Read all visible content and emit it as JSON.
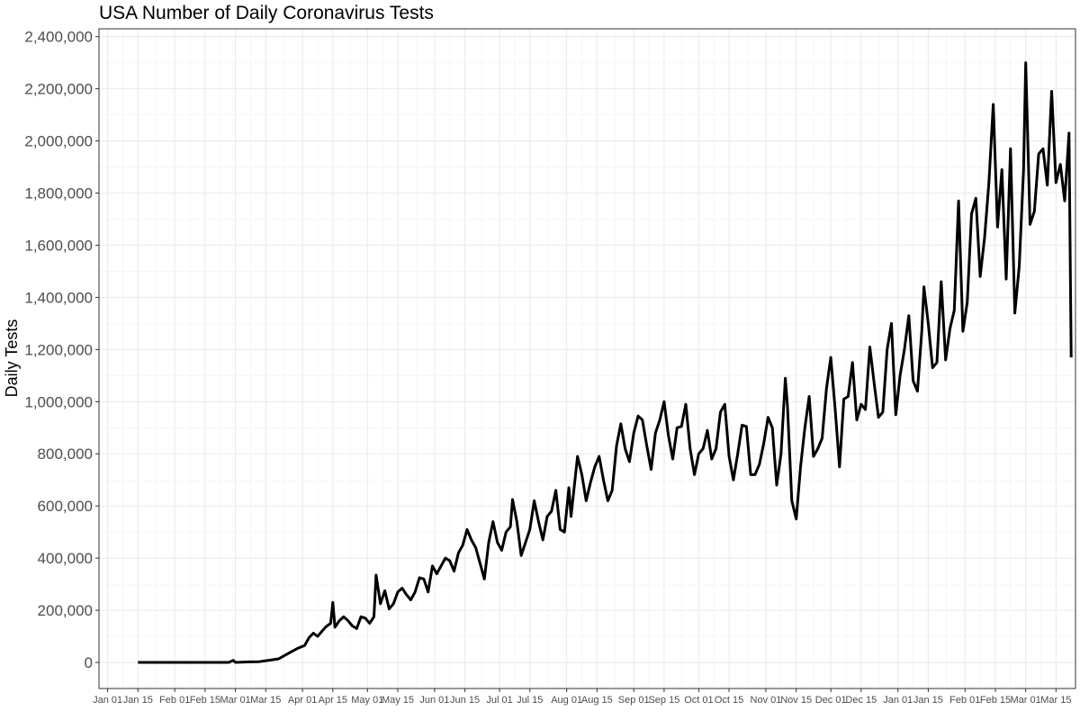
{
  "chart_data": {
    "type": "line",
    "title": "USA Number of Daily Coronavirus Tests",
    "xlabel": "",
    "ylabel": "Daily Tests",
    "ylim": [
      -100000,
      2430000
    ],
    "xlim": [
      "2020-12-28",
      "2022-03-24"
    ],
    "grid": true,
    "legend": "none",
    "line_color": "#000000",
    "y_ticks": [
      {
        "value": 0,
        "label": "0"
      },
      {
        "value": 200000,
        "label": "200,000"
      },
      {
        "value": 400000,
        "label": "400,000"
      },
      {
        "value": 600000,
        "label": "600,000"
      },
      {
        "value": 800000,
        "label": "800,000"
      },
      {
        "value": 1000000,
        "label": "1,000,000"
      },
      {
        "value": 1200000,
        "label": "1,200,000"
      },
      {
        "value": 1400000,
        "label": "1,400,000"
      },
      {
        "value": 1600000,
        "label": "1,600,000"
      },
      {
        "value": 1800000,
        "label": "1,800,000"
      },
      {
        "value": 2000000,
        "label": "2,000,000"
      },
      {
        "value": 2200000,
        "label": "2,200,000"
      },
      {
        "value": 2400000,
        "label": "2,400,000"
      }
    ],
    "x_ticks": [
      {
        "value": "2021-01-01",
        "label": "Jan 01"
      },
      {
        "value": "2021-01-15",
        "label": "Jan 15"
      },
      {
        "value": "2021-02-01",
        "label": "Feb 01"
      },
      {
        "value": "2021-02-15",
        "label": "Feb 15"
      },
      {
        "value": "2021-03-01",
        "label": "Mar 01"
      },
      {
        "value": "2021-03-15",
        "label": "Mar 15"
      },
      {
        "value": "2021-04-01",
        "label": "Apr 01"
      },
      {
        "value": "2021-04-15",
        "label": "Apr 15"
      },
      {
        "value": "2021-05-01",
        "label": "May 01"
      },
      {
        "value": "2021-05-15",
        "label": "May 15"
      },
      {
        "value": "2021-06-01",
        "label": "Jun 01"
      },
      {
        "value": "2021-06-15",
        "label": "Jun 15"
      },
      {
        "value": "2021-07-01",
        "label": "Jul 01"
      },
      {
        "value": "2021-07-15",
        "label": "Jul 15"
      },
      {
        "value": "2021-08-01",
        "label": "Aug 01"
      },
      {
        "value": "2021-08-15",
        "label": "Aug 15"
      },
      {
        "value": "2021-09-01",
        "label": "Sep 01"
      },
      {
        "value": "2021-09-15",
        "label": "Sep 15"
      },
      {
        "value": "2021-10-01",
        "label": "Oct 01"
      },
      {
        "value": "2021-10-15",
        "label": "Oct 15"
      },
      {
        "value": "2021-11-01",
        "label": "Nov 01"
      },
      {
        "value": "2021-11-15",
        "label": "Nov 15"
      },
      {
        "value": "2021-12-01",
        "label": "Dec 01"
      },
      {
        "value": "2021-12-15",
        "label": "Dec 15"
      },
      {
        "value": "2022-01-01",
        "label": "Jan 01"
      },
      {
        "value": "2022-01-15",
        "label": "Jan 15"
      },
      {
        "value": "2022-02-01",
        "label": "Feb 01"
      },
      {
        "value": "2022-02-15",
        "label": "Feb 15"
      },
      {
        "value": "2022-03-01",
        "label": "Mar 01"
      },
      {
        "value": "2022-03-15",
        "label": "Mar 15"
      }
    ],
    "series": [
      {
        "values": [
          [
            "2021-01-15",
            0
          ],
          [
            "2021-02-01",
            0
          ],
          [
            "2021-02-15",
            0
          ],
          [
            "2021-02-26",
            0
          ],
          [
            "2021-02-28",
            8000
          ],
          [
            "2021-03-01",
            0
          ],
          [
            "2021-03-08",
            2000
          ],
          [
            "2021-03-12",
            3000
          ],
          [
            "2021-03-18",
            10000
          ],
          [
            "2021-03-21",
            14000
          ],
          [
            "2021-03-24",
            28000
          ],
          [
            "2021-03-27",
            42000
          ],
          [
            "2021-03-30",
            55000
          ],
          [
            "2021-04-02",
            65000
          ],
          [
            "2021-04-04",
            95000
          ],
          [
            "2021-04-06",
            112000
          ],
          [
            "2021-04-08",
            100000
          ],
          [
            "2021-04-10",
            120000
          ],
          [
            "2021-04-12",
            138000
          ],
          [
            "2021-04-14",
            150000
          ],
          [
            "2021-04-15",
            230000
          ],
          [
            "2021-04-16",
            135000
          ],
          [
            "2021-04-18",
            160000
          ],
          [
            "2021-04-20",
            175000
          ],
          [
            "2021-04-22",
            160000
          ],
          [
            "2021-04-24",
            140000
          ],
          [
            "2021-04-26",
            130000
          ],
          [
            "2021-04-28",
            175000
          ],
          [
            "2021-04-30",
            170000
          ],
          [
            "2021-05-02",
            150000
          ],
          [
            "2021-05-04",
            175000
          ],
          [
            "2021-05-05",
            335000
          ],
          [
            "2021-05-07",
            225000
          ],
          [
            "2021-05-09",
            275000
          ],
          [
            "2021-05-11",
            205000
          ],
          [
            "2021-05-13",
            225000
          ],
          [
            "2021-05-15",
            270000
          ],
          [
            "2021-05-17",
            285000
          ],
          [
            "2021-05-19",
            260000
          ],
          [
            "2021-05-21",
            240000
          ],
          [
            "2021-05-23",
            270000
          ],
          [
            "2021-05-25",
            325000
          ],
          [
            "2021-05-27",
            320000
          ],
          [
            "2021-05-29",
            270000
          ],
          [
            "2021-05-31",
            370000
          ],
          [
            "2021-06-02",
            340000
          ],
          [
            "2021-06-04",
            370000
          ],
          [
            "2021-06-06",
            400000
          ],
          [
            "2021-06-08",
            390000
          ],
          [
            "2021-06-10",
            350000
          ],
          [
            "2021-06-12",
            420000
          ],
          [
            "2021-06-14",
            450000
          ],
          [
            "2021-06-16",
            510000
          ],
          [
            "2021-06-18",
            470000
          ],
          [
            "2021-06-20",
            440000
          ],
          [
            "2021-06-22",
            380000
          ],
          [
            "2021-06-24",
            320000
          ],
          [
            "2021-06-26",
            460000
          ],
          [
            "2021-06-28",
            540000
          ],
          [
            "2021-06-30",
            460000
          ],
          [
            "2021-07-02",
            430000
          ],
          [
            "2021-07-04",
            500000
          ],
          [
            "2021-07-06",
            520000
          ],
          [
            "2021-07-07",
            625000
          ],
          [
            "2021-07-09",
            540000
          ],
          [
            "2021-07-11",
            410000
          ],
          [
            "2021-07-13",
            460000
          ],
          [
            "2021-07-15",
            510000
          ],
          [
            "2021-07-17",
            620000
          ],
          [
            "2021-07-19",
            540000
          ],
          [
            "2021-07-21",
            470000
          ],
          [
            "2021-07-23",
            560000
          ],
          [
            "2021-07-25",
            580000
          ],
          [
            "2021-07-27",
            660000
          ],
          [
            "2021-07-29",
            510000
          ],
          [
            "2021-07-31",
            500000
          ],
          [
            "2021-08-02",
            670000
          ],
          [
            "2021-08-03",
            560000
          ],
          [
            "2021-08-06",
            790000
          ],
          [
            "2021-08-08",
            720000
          ],
          [
            "2021-08-10",
            620000
          ],
          [
            "2021-08-12",
            690000
          ],
          [
            "2021-08-14",
            750000
          ],
          [
            "2021-08-16",
            790000
          ],
          [
            "2021-08-18",
            700000
          ],
          [
            "2021-08-20",
            620000
          ],
          [
            "2021-08-22",
            660000
          ],
          [
            "2021-08-24",
            830000
          ],
          [
            "2021-08-26",
            915000
          ],
          [
            "2021-08-28",
            820000
          ],
          [
            "2021-08-30",
            770000
          ],
          [
            "2021-09-01",
            880000
          ],
          [
            "2021-09-03",
            945000
          ],
          [
            "2021-09-05",
            930000
          ],
          [
            "2021-09-07",
            830000
          ],
          [
            "2021-09-09",
            740000
          ],
          [
            "2021-09-11",
            880000
          ],
          [
            "2021-09-13",
            930000
          ],
          [
            "2021-09-15",
            1000000
          ],
          [
            "2021-09-17",
            870000
          ],
          [
            "2021-09-19",
            780000
          ],
          [
            "2021-09-21",
            900000
          ],
          [
            "2021-09-23",
            905000
          ],
          [
            "2021-09-25",
            990000
          ],
          [
            "2021-09-27",
            820000
          ],
          [
            "2021-09-29",
            720000
          ],
          [
            "2021-10-01",
            800000
          ],
          [
            "2021-10-03",
            820000
          ],
          [
            "2021-10-05",
            890000
          ],
          [
            "2021-10-07",
            780000
          ],
          [
            "2021-10-09",
            820000
          ],
          [
            "2021-10-11",
            960000
          ],
          [
            "2021-10-13",
            990000
          ],
          [
            "2021-10-15",
            790000
          ],
          [
            "2021-10-17",
            700000
          ],
          [
            "2021-10-19",
            800000
          ],
          [
            "2021-10-21",
            910000
          ],
          [
            "2021-10-23",
            905000
          ],
          [
            "2021-10-25",
            720000
          ],
          [
            "2021-10-27",
            720000
          ],
          [
            "2021-10-29",
            760000
          ],
          [
            "2021-10-31",
            840000
          ],
          [
            "2021-11-02",
            940000
          ],
          [
            "2021-11-04",
            900000
          ],
          [
            "2021-11-06",
            680000
          ],
          [
            "2021-11-08",
            800000
          ],
          [
            "2021-11-10",
            1090000
          ],
          [
            "2021-11-11",
            980000
          ],
          [
            "2021-11-13",
            620000
          ],
          [
            "2021-11-15",
            550000
          ],
          [
            "2021-11-17",
            750000
          ],
          [
            "2021-11-19",
            900000
          ],
          [
            "2021-11-21",
            1020000
          ],
          [
            "2021-11-23",
            790000
          ],
          [
            "2021-11-25",
            820000
          ],
          [
            "2021-11-27",
            860000
          ],
          [
            "2021-11-29",
            1050000
          ],
          [
            "2021-12-01",
            1170000
          ],
          [
            "2021-12-03",
            970000
          ],
          [
            "2021-12-05",
            750000
          ],
          [
            "2021-12-07",
            1010000
          ],
          [
            "2021-12-09",
            1020000
          ],
          [
            "2021-12-11",
            1150000
          ],
          [
            "2021-12-13",
            930000
          ],
          [
            "2021-12-15",
            990000
          ],
          [
            "2021-12-17",
            970000
          ],
          [
            "2021-12-19",
            1210000
          ],
          [
            "2021-12-21",
            1070000
          ],
          [
            "2021-12-23",
            940000
          ],
          [
            "2021-12-25",
            960000
          ],
          [
            "2021-12-27",
            1200000
          ],
          [
            "2021-12-29",
            1300000
          ],
          [
            "2021-12-31",
            950000
          ],
          [
            "2022-01-02",
            1100000
          ],
          [
            "2022-01-04",
            1200000
          ],
          [
            "2022-01-06",
            1330000
          ],
          [
            "2022-01-08",
            1080000
          ],
          [
            "2022-01-10",
            1040000
          ],
          [
            "2022-01-12",
            1270000
          ],
          [
            "2022-01-13",
            1440000
          ],
          [
            "2022-01-15",
            1300000
          ],
          [
            "2022-01-17",
            1130000
          ],
          [
            "2022-01-19",
            1150000
          ],
          [
            "2022-01-21",
            1460000
          ],
          [
            "2022-01-23",
            1160000
          ],
          [
            "2022-01-25",
            1280000
          ],
          [
            "2022-01-27",
            1350000
          ],
          [
            "2022-01-29",
            1770000
          ],
          [
            "2022-01-31",
            1270000
          ],
          [
            "2022-02-02",
            1380000
          ],
          [
            "2022-02-04",
            1720000
          ],
          [
            "2022-02-06",
            1780000
          ],
          [
            "2022-02-08",
            1480000
          ],
          [
            "2022-02-10",
            1630000
          ],
          [
            "2022-02-12",
            1840000
          ],
          [
            "2022-02-14",
            2140000
          ],
          [
            "2022-02-16",
            1670000
          ],
          [
            "2022-02-18",
            1890000
          ],
          [
            "2022-02-20",
            1470000
          ],
          [
            "2022-02-22",
            1970000
          ],
          [
            "2022-02-24",
            1340000
          ],
          [
            "2022-02-26",
            1520000
          ],
          [
            "2022-02-28",
            1890000
          ],
          [
            "2022-03-01",
            2300000
          ],
          [
            "2022-03-03",
            1680000
          ],
          [
            "2022-03-05",
            1730000
          ],
          [
            "2022-03-07",
            1950000
          ],
          [
            "2022-03-09",
            1970000
          ],
          [
            "2022-03-11",
            1830000
          ],
          [
            "2022-03-13",
            2190000
          ],
          [
            "2022-03-15",
            1840000
          ],
          [
            "2022-03-17",
            1910000
          ],
          [
            "2022-03-19",
            1770000
          ],
          [
            "2022-03-21",
            2030000
          ],
          [
            "2022-03-22",
            1170000
          ]
        ]
      }
    ]
  }
}
